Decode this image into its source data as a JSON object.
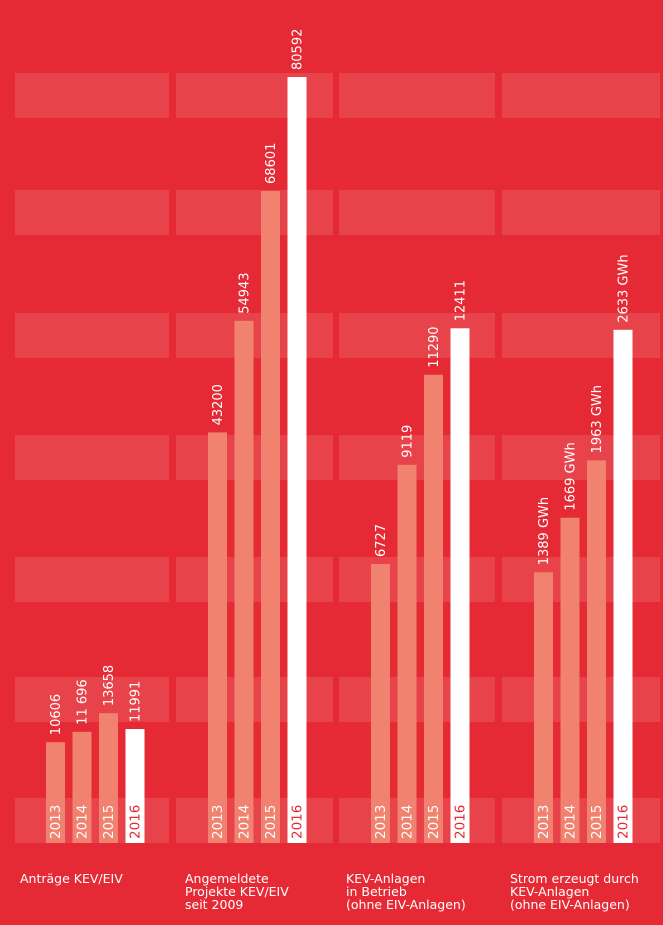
{
  "chart_data": {
    "type": "bar",
    "groups": [
      {
        "label": "Anträge KEV/EIV",
        "years": [
          "2013",
          "2014",
          "2015",
          "2016"
        ],
        "values": [
          10606,
          11696,
          13658,
          11991
        ],
        "value_labels": [
          "10606",
          "11 696",
          "13658",
          "11991"
        ],
        "scale_max": 80592
      },
      {
        "label": "Angemeldete\nProjekte KEV/EIV\nseit 2009",
        "years": [
          "2013",
          "2014",
          "2015",
          "2016"
        ],
        "values": [
          43200,
          54943,
          68601,
          80592
        ],
        "value_labels": [
          "43200",
          "54943",
          "68601",
          "80592"
        ],
        "scale_max": 80592
      },
      {
        "label": "KEV-Anlagen\nin Betrieb\n(ohne EIV-Anlagen)",
        "years": [
          "2013",
          "2014",
          "2015",
          "2016"
        ],
        "values": [
          6727,
          9119,
          11290,
          12411
        ],
        "value_labels": [
          "6727",
          "9119",
          "11290",
          "12411"
        ],
        "scale_max": 18470
      },
      {
        "label": "Strom erzeugt durch\nKEV-Anlagen\n(ohne EIV-Anlagen)",
        "years": [
          "2013",
          "2014",
          "2015",
          "2016"
        ],
        "values": [
          1389,
          1669,
          1963,
          2633
        ],
        "value_labels": [
          "1389 GWh",
          "1669 GWh",
          "1963 GWh",
          "2633 GWh"
        ],
        "scale_max": 3930
      }
    ]
  },
  "colors": {
    "background": "#E52A35",
    "band": "#E8434A",
    "bar_past": "#F0826F",
    "bar_current": "#FFFFFF",
    "bar_current_text": "#E52A35",
    "text": "#FFFFFF"
  }
}
